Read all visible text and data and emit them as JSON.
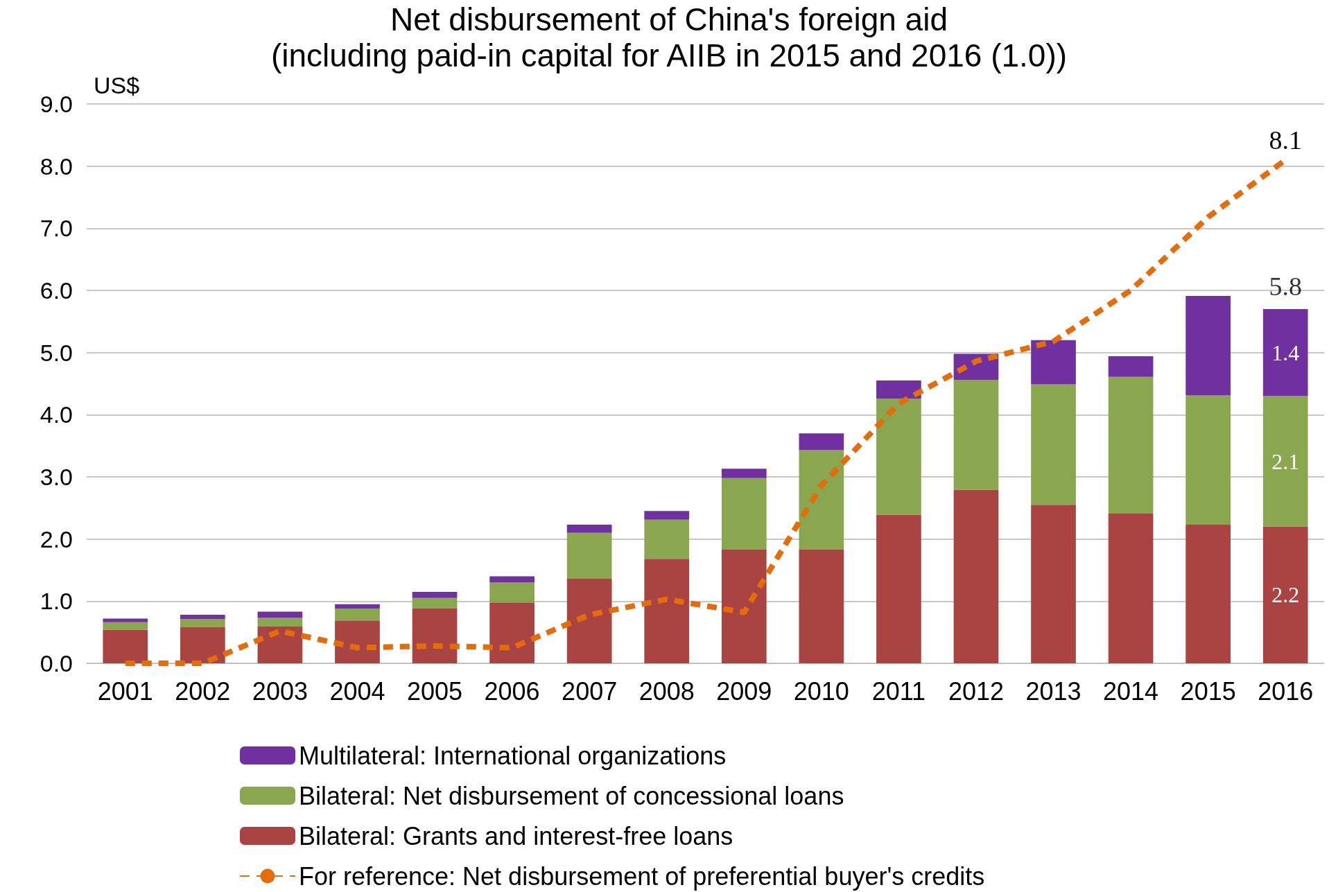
{
  "chart_data": {
    "type": "bar",
    "stacked": true,
    "title": "Net disbursement of China's foreign aid",
    "subtitle": "(including paid-in capital for AIIB in 2015 and 2016 (1.0))",
    "ylabel": "US$",
    "categories": [
      "2001",
      "2002",
      "2003",
      "2004",
      "2005",
      "2006",
      "2007",
      "2008",
      "2009",
      "2010",
      "2011",
      "2012",
      "2013",
      "2014",
      "2015",
      "2016"
    ],
    "series": [
      {
        "name": "Bilateral: Grants and interest-free loans",
        "color": "#a94442",
        "values": [
          0.54,
          0.58,
          0.59,
          0.69,
          0.88,
          0.98,
          1.36,
          1.68,
          1.83,
          1.83,
          2.39,
          2.79,
          2.55,
          2.41,
          2.23,
          2.2
        ],
        "value_labels": [
          null,
          null,
          null,
          null,
          null,
          null,
          null,
          null,
          null,
          null,
          null,
          null,
          null,
          null,
          null,
          "2.2"
        ]
      },
      {
        "name": "Bilateral: Net disbursement of concessional loans",
        "color": "#8aa64e",
        "values": [
          0.12,
          0.13,
          0.14,
          0.19,
          0.17,
          0.32,
          0.74,
          0.63,
          1.15,
          1.6,
          1.87,
          1.77,
          1.94,
          2.2,
          2.08,
          2.1
        ],
        "value_labels": [
          null,
          null,
          null,
          null,
          null,
          null,
          null,
          null,
          null,
          null,
          null,
          null,
          null,
          null,
          null,
          "2.1"
        ]
      },
      {
        "name": "Multilateral: International organizations",
        "color": "#7030a0",
        "values": [
          0.06,
          0.07,
          0.1,
          0.07,
          0.1,
          0.1,
          0.13,
          0.14,
          0.15,
          0.27,
          0.29,
          0.42,
          0.71,
          0.33,
          1.6,
          1.4
        ],
        "value_labels": [
          null,
          null,
          null,
          null,
          null,
          null,
          null,
          null,
          null,
          null,
          null,
          null,
          null,
          null,
          null,
          "1.4"
        ]
      },
      {
        "name": "For reference: Net disbursement of preferential buyer's credits",
        "type": "line",
        "color": "#e46c0a",
        "line_style": "dashed",
        "marker": "none",
        "values": [
          0.0,
          0.0,
          0.52,
          0.25,
          0.28,
          0.25,
          0.78,
          1.03,
          0.82,
          2.86,
          4.18,
          4.86,
          5.18,
          6.0,
          7.18,
          8.1
        ],
        "value_labels": [
          null,
          null,
          null,
          null,
          null,
          null,
          null,
          null,
          null,
          null,
          null,
          null,
          null,
          null,
          null,
          "8.1"
        ]
      }
    ],
    "totals": [
      null,
      null,
      null,
      null,
      null,
      null,
      null,
      null,
      null,
      null,
      null,
      null,
      null,
      null,
      null,
      "5.8"
    ],
    "ylim": [
      0,
      9
    ],
    "yticks": [
      {
        "value": 0,
        "label": "0.0"
      },
      {
        "value": 1,
        "label": "1.0"
      },
      {
        "value": 2,
        "label": "2.0"
      },
      {
        "value": 3,
        "label": "3.0"
      },
      {
        "value": 4,
        "label": "4.0"
      },
      {
        "value": 5,
        "label": "5.0"
      },
      {
        "value": 6,
        "label": "6.0"
      },
      {
        "value": 7,
        "label": "7.0"
      },
      {
        "value": 8,
        "label": "8.0"
      },
      {
        "value": 9,
        "label": "9.0"
      }
    ],
    "grid": "y",
    "legend": "bottom"
  }
}
